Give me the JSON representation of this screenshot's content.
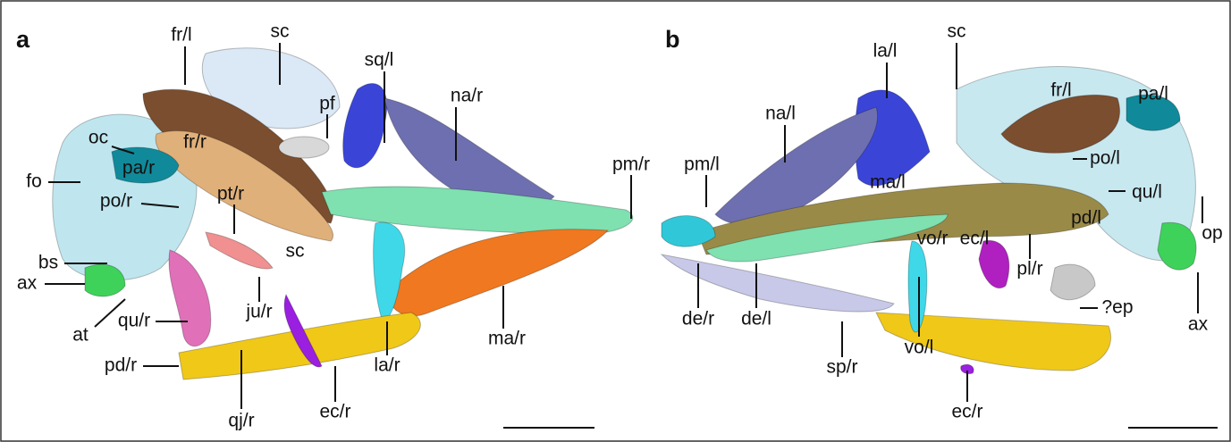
{
  "panels": [
    {
      "letter": "a",
      "labels": [
        "fr/l",
        "sc",
        "pf",
        "sq/l",
        "na/r",
        "oc",
        "fo",
        "pa/r",
        "fr/r",
        "po/r",
        "pt/r",
        "sc",
        "bs",
        "ax",
        "at",
        "qu/r",
        "ju/r",
        "pd/r",
        "qj/r",
        "ec/r",
        "la/r",
        "ma/r",
        "pm/r"
      ]
    },
    {
      "letter": "b",
      "labels": [
        "la/l",
        "sc",
        "na/l",
        "fr/l",
        "pa/l",
        "pm/l",
        "po/l",
        "ma/l",
        "qu/l",
        "op",
        "pd/l",
        "vo/r",
        "ec/l",
        "de/r",
        "de/l",
        "pl/r",
        "?ep",
        "sp/r",
        "vo/l",
        "ax",
        "ec/r"
      ]
    }
  ]
}
